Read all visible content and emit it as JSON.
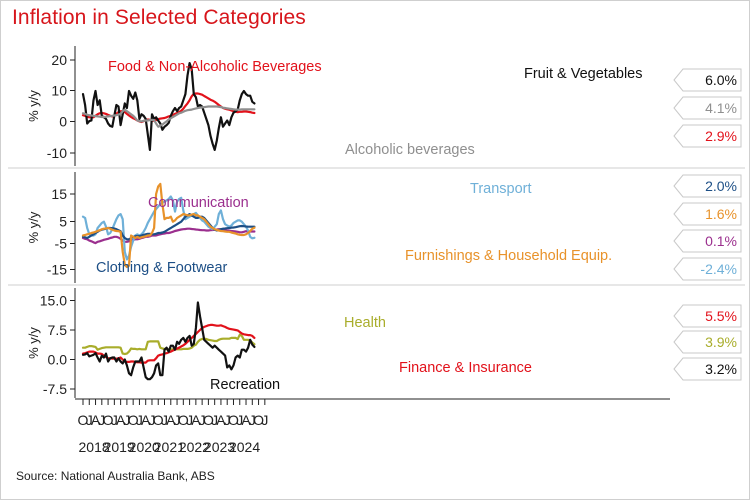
{
  "title": "Inflation in Selected Categories",
  "source": "Source: National Australia Bank, ABS",
  "colors": {
    "title": "#d7151b",
    "red": "#e2121b",
    "black": "#111111",
    "grey": "#8f8f8f",
    "purple": "#9b2f8e",
    "lightblue": "#6fb0d8",
    "navy": "#1d4f86",
    "orange": "#e8922a",
    "olive": "#a9ad2b"
  },
  "x_axis": {
    "month_ticks": [
      "O",
      "J",
      "A",
      "J",
      "O",
      "J",
      "A",
      "J",
      "O",
      "J",
      "A",
      "J",
      "O",
      "J",
      "A",
      "J",
      "O",
      "J",
      "A",
      "J",
      "O",
      "J",
      "A",
      "J",
      "O",
      "J",
      "A",
      "J",
      "O",
      "J"
    ],
    "year_labels": [
      "2018",
      "2019",
      "2020",
      "2021",
      "2022",
      "2023",
      "2024"
    ]
  },
  "chart_data": [
    {
      "type": "line",
      "ylabel": "% y/y",
      "ylim": [
        -15,
        25
      ],
      "yticks": [
        "20",
        "10",
        "0",
        "-10"
      ],
      "x_start": "2018-10",
      "series": [
        {
          "name": "Food & Non-Alcoholic Beverages",
          "color": "#e2121b",
          "values": [
            2.2,
            2.0,
            1.7,
            1.5,
            1.5,
            1.5,
            2.0,
            2.5,
            2.8,
            2.9,
            2.8,
            2.6,
            2.3,
            2.0,
            1.8,
            2.2,
            2.7,
            3.2,
            3.5,
            3.5,
            3.2,
            2.6,
            2.1,
            1.6,
            1.2,
            0.9,
            0.5,
            0.2,
            0,
            0.3,
            0.6,
            0.8,
            0.7,
            0.5,
            0.4,
            0.6,
            0.9,
            1.1,
            1.2,
            1.3,
            1.5,
            1.8,
            2.0,
            2.3,
            2.6,
            2.9,
            3.2,
            3.6,
            4.3,
            5.2,
            6.0,
            7.0,
            8.3,
            9.1,
            9.2,
            9.2,
            9.0,
            8.8,
            8.4,
            8.0,
            7.6,
            7.2,
            6.9,
            6.5,
            6.0,
            5.5,
            5.0,
            4.5,
            4.3,
            4.1,
            4.0,
            3.7,
            3.5,
            3.3,
            3.2,
            3.3,
            3.3,
            3.4,
            3.4,
            3.3,
            3.2,
            3.0,
            2.9
          ]
        },
        {
          "name": "Fruit & Vegetables",
          "color": "#111111",
          "values": [
            9.0,
            5.5,
            -0.5,
            0.3,
            0.5,
            7.0,
            10.0,
            5.5,
            7.0,
            2.0,
            1.5,
            1.0,
            -0.5,
            -1.3,
            -1.5,
            2.0,
            5.5,
            5.0,
            -1.0,
            2.5,
            6.0,
            4.5,
            10.0,
            8.5,
            7.5,
            9.5,
            7.0,
            1.0,
            2.5,
            2.0,
            1.0,
            -4.0,
            -9.0,
            2.5,
            1.0,
            1.5,
            0.5,
            -0.5,
            -2.5,
            -1.5,
            -1.0,
            -0.3,
            2.0,
            3.5,
            4.5,
            3.5,
            4.5,
            5.0,
            7.0,
            9.0,
            15.0,
            19.0,
            17.0,
            9.0,
            8.0,
            5.0,
            5.5,
            5.0,
            3.0,
            1.0,
            -1.0,
            -4.5,
            -7.0,
            -9.0,
            -6.0,
            -2.0,
            1.5,
            -1.5,
            -0.5,
            0.5,
            -1.0,
            1.5,
            3.0,
            3.5,
            4.0,
            7.0,
            9.0,
            10.0,
            9.0,
            8.5,
            8.5,
            6.5,
            6.0
          ]
        },
        {
          "name": "Alcoholic beverages",
          "color": "#8f8f8f",
          "values": [
            2.8,
            2.6,
            2.3,
            2.2,
            2.1,
            2.0,
            1.9,
            1.8,
            1.7,
            1.6,
            1.6,
            1.7,
            1.8,
            1.9,
            2.0,
            2.1,
            2.2,
            2.4,
            2.6,
            3.5,
            4.0,
            3.5,
            3.0,
            2.5,
            2.0,
            1.3,
            0.5,
            0.3,
            0.2,
            0.4,
            0.5,
            0.5,
            0.6,
            0.7,
            0.6,
            -0.5,
            -1.5,
            -1.2,
            -0.8,
            -0.3,
            0.2,
            0.8,
            1.2,
            1.6,
            2.0,
            2.4,
            2.8,
            3.0,
            3.3,
            3.6,
            3.8,
            3.9,
            4.0,
            4.2,
            4.4,
            4.5,
            4.6,
            4.7,
            4.8,
            4.9,
            5.0,
            5.0,
            5.0,
            5.0,
            5.0,
            4.9,
            4.8,
            4.6,
            4.5,
            4.4,
            4.3,
            4.2,
            4.1,
            4.0,
            4.0,
            4.0,
            4.1,
            4.1,
            4.1,
            4.1,
            4.1,
            4.1,
            4.1
          ]
        }
      ],
      "end_labels": [
        {
          "text": "6.0%",
          "color": "#111111"
        },
        {
          "text": "4.1%",
          "color": "#8f8f8f"
        },
        {
          "text": "2.9%",
          "color": "#e2121b"
        }
      ],
      "series_labels": [
        {
          "text": "Food & Non-Alcoholic Beverages",
          "color": "#e2121b"
        },
        {
          "text": "Fruit & Vegetables",
          "color": "#111111"
        },
        {
          "text": "Alcoholic beverages",
          "color": "#8f8f8f"
        }
      ]
    },
    {
      "type": "line",
      "ylabel": "% y/y",
      "ylim": [
        -20,
        22
      ],
      "yticks": [
        "15",
        "5",
        "-5",
        "-15"
      ],
      "x_start": "2018-10",
      "series": [
        {
          "name": "Communication",
          "color": "#9b2f8e",
          "values": [
            -2.5,
            -2.8,
            -3.0,
            -3.5,
            -3.8,
            -4.2,
            -4.5,
            -4.0,
            -3.8,
            -3.5,
            -3.2,
            -3.0,
            -2.8,
            -2.5,
            -2.3,
            -2.0,
            -2.0,
            -2.3,
            -2.8,
            -3.5,
            -4.0,
            -4.0,
            -3.8,
            -3.5,
            -3.2,
            -3.0,
            -3.0,
            -2.8,
            -2.5,
            -2.3,
            -2.0,
            -2.0,
            -1.8,
            -1.5,
            -1.5,
            -1.5,
            -1.2,
            -1.0,
            -0.8,
            -0.7,
            -0.5,
            -0.5,
            -0.3,
            0,
            0.3,
            0.5,
            0.7,
            0.9,
            1.0,
            1.1,
            1.2,
            1.2,
            1.1,
            1.0,
            0.9,
            0.8,
            0.7,
            0.6,
            0.6,
            0.5,
            0.5,
            0.6,
            0.7,
            0.8,
            0.9,
            1.0,
            1.0,
            0.8,
            0.6,
            0.5,
            0.4,
            0.3,
            0.2,
            0.1,
            0,
            -0.2,
            -0.2,
            0,
            0.2,
            0.1,
            0.1,
            0.1,
            0.1
          ]
        },
        {
          "name": "Transport",
          "color": "#6fb0d8",
          "values": [
            6.0,
            5.5,
            1.5,
            -1.0,
            -1.5,
            -1.5,
            -1.0,
            1.5,
            2.5,
            3.5,
            4.0,
            2.0,
            -1.0,
            -0.5,
            1.0,
            3.0,
            5.0,
            6.5,
            7.0,
            5.0,
            -8.0,
            -11.0,
            -9.5,
            -6.0,
            -3.5,
            -1.5,
            -1.0,
            -1.5,
            -1.0,
            0,
            1.5,
            3.5,
            5.0,
            6.5,
            8.0,
            9.0,
            10.0,
            11.0,
            11.5,
            12.0,
            12.5,
            13.0,
            14.0,
            12.5,
            8.0,
            12.0,
            13.0,
            13.5,
            8.5,
            5.0,
            5.5,
            6.0,
            6.5,
            7.0,
            7.5,
            6.5,
            5.5,
            4.5,
            4.0,
            3.0,
            2.0,
            1.5,
            1.0,
            2.0,
            3.0,
            7.0,
            8.5,
            5.0,
            3.0,
            2.5,
            2.0,
            2.5,
            3.5,
            4.0,
            4.5,
            4.5,
            4.0,
            3.0,
            2.0,
            0.5,
            -2.0,
            -2.6,
            -2.4
          ]
        },
        {
          "name": "Clothing & Footwear",
          "color": "#1d4f86",
          "values": [
            -2.0,
            -2.2,
            -2.5,
            -2.0,
            -1.5,
            -1.0,
            -0.5,
            0,
            0.5,
            0.8,
            1.0,
            1.2,
            1.5,
            1.5,
            1.4,
            1.3,
            1.0,
            0.6,
            0.2,
            -1.5,
            -2.5,
            -3.0,
            -3.0,
            -2.5,
            -2.0,
            -1.8,
            -1.7,
            -1.8,
            -1.5,
            -1.2,
            -1.0,
            -0.8,
            -0.8,
            -1.0,
            -1.0,
            -0.8,
            -0.5,
            -0.5,
            -0.3,
            0,
            0.5,
            1.0,
            1.5,
            2.0,
            2.5,
            3.0,
            3.5,
            4.0,
            5.0,
            6.0,
            6.5,
            7.0,
            6.5,
            6.0,
            5.5,
            5.5,
            6.0,
            6.0,
            5.5,
            4.5,
            3.5,
            2.5,
            1.5,
            0.8,
            0.5,
            0.7,
            1.0,
            1.2,
            1.3,
            1.4,
            1.5,
            1.6,
            1.7,
            1.8,
            2.0,
            2.2,
            2.3,
            2.2,
            2.1,
            2.0,
            2.0,
            2.0,
            2.0
          ]
        },
        {
          "name": "Furnishings & Household Equip.",
          "color": "#e8922a",
          "values": [
            -1.5,
            -1.3,
            -1.0,
            -0.8,
            -0.5,
            -0.3,
            0,
            0.3,
            0.6,
            1.0,
            1.2,
            1.3,
            1.5,
            1.2,
            0.8,
            0.5,
            0.3,
            0.2,
            0,
            -8.0,
            -13.0,
            -14.0,
            -13.5,
            -1.5,
            -2.0,
            -2.5,
            -2.0,
            -2.5,
            -2.2,
            -2.0,
            -1.8,
            -1.5,
            -1.5,
            -0.5,
            1.5,
            15.0,
            18.0,
            19.0,
            11.0,
            5.0,
            5.5,
            5.5,
            6.0,
            4.0,
            4.5,
            5.5,
            6.0,
            6.5,
            7.0,
            6.8,
            6.5,
            6.5,
            6.8,
            7.0,
            6.5,
            6.5,
            6.0,
            5.5,
            5.0,
            4.0,
            3.0,
            2.0,
            1.5,
            1.0,
            0.7,
            0.5,
            0.3,
            0.2,
            0.1,
            0,
            0,
            -0.3,
            -0.5,
            -0.7,
            -1.0,
            -1.2,
            -1.3,
            -1.3,
            -1.0,
            -0.5,
            0.3,
            1.2,
            1.6
          ]
        }
      ],
      "end_labels": [
        {
          "text": "2.0%",
          "color": "#1d4f86"
        },
        {
          "text": "1.6%",
          "color": "#e8922a"
        },
        {
          "text": "0.1%",
          "color": "#9b2f8e"
        },
        {
          "text": "-2.4%",
          "color": "#6fb0d8"
        }
      ],
      "series_labels": [
        {
          "text": "Communication",
          "color": "#9b2f8e"
        },
        {
          "text": "Transport",
          "color": "#6fb0d8"
        },
        {
          "text": "Clothing & Footwear",
          "color": "#1d4f86"
        },
        {
          "text": "Furnishings & Household Equip.",
          "color": "#e8922a"
        }
      ]
    },
    {
      "type": "line",
      "ylabel": "% y/y",
      "ylim": [
        -10,
        18
      ],
      "yticks": [
        "15.0",
        "7.5",
        "0.0",
        "-7.5"
      ],
      "x_start": "2018-10",
      "series": [
        {
          "name": "Health",
          "color": "#a9ad2b",
          "values": [
            3.0,
            3.0,
            3.2,
            3.4,
            3.4,
            3.3,
            3.2,
            2.5,
            2.7,
            2.9,
            3.0,
            3.1,
            3.1,
            3.1,
            3.1,
            3.1,
            3.1,
            3.1,
            3.0,
            1.5,
            1.4,
            1.5,
            2.0,
            2.8,
            2.7,
            2.7,
            2.6,
            2.7,
            2.6,
            2.6,
            2.6,
            4.5,
            4.6,
            4.6,
            4.6,
            4.6,
            4.6,
            3.0,
            2.8,
            2.7,
            2.6,
            2.6,
            2.6,
            2.6,
            2.6,
            2.6,
            2.6,
            2.6,
            2.7,
            2.7,
            2.7,
            2.8,
            3.0,
            3.5,
            3.8,
            4.5,
            5.0,
            5.2,
            5.3,
            5.2,
            5.0,
            4.9,
            4.8,
            4.7,
            4.7,
            5.0,
            5.2,
            5.3,
            5.3,
            5.3,
            5.3,
            5.5,
            5.5,
            5.5,
            5.2,
            6.3,
            6.0,
            5.0,
            5.0,
            5.0,
            4.8,
            4.3,
            3.9
          ]
        },
        {
          "name": "Finance & Insurance",
          "color": "#e2121b",
          "values": [
            1.5,
            1.6,
            1.8,
            2.0,
            2.0,
            2.0,
            1.8,
            1.5,
            1.5,
            1.4,
            1.0,
            0.6,
            0.3,
            0.3,
            0.2,
            0.2,
            0.2,
            0.3,
            0.5,
            0,
            -0.5,
            -0.6,
            -0.6,
            -0.5,
            -0.5,
            -0.6,
            -0.7,
            -0.7,
            -0.8,
            -0.8,
            -0.8,
            -0.3,
            -0.2,
            -0.2,
            -0.2,
            0.3,
            1.0,
            1.2,
            1.3,
            1.5,
            1.6,
            1.8,
            2.0,
            2.3,
            2.5,
            2.8,
            3.0,
            3.3,
            3.6,
            4.0,
            4.5,
            5.0,
            5.5,
            6.0,
            6.5,
            7.0,
            7.5,
            8.0,
            8.3,
            8.5,
            8.7,
            8.8,
            8.8,
            8.7,
            8.6,
            8.6,
            8.7,
            8.5,
            8.3,
            8.0,
            7.8,
            7.7,
            7.6,
            7.5,
            7.4,
            7.0,
            6.6,
            6.4,
            6.3,
            6.2,
            6.2,
            6.0,
            5.5
          ]
        },
        {
          "name": "Recreation",
          "color": "#111111",
          "values": [
            1.2,
            1.3,
            1.6,
            0.8,
            1.0,
            1.2,
            1.6,
            0.5,
            -0.5,
            1.0,
            0.5,
            1.5,
            -0.5,
            0.3,
            0.5,
            0.5,
            -0.5,
            0.3,
            -0.5,
            -1.0,
            0,
            -1.5,
            -3.5,
            -4.0,
            -2.0,
            -0.5,
            -0.5,
            -0.5,
            0.5,
            -2.0,
            -4.5,
            -5.0,
            -5.0,
            -4.5,
            -3.5,
            -1.5,
            -1.0,
            -4.0,
            -4.0,
            2.5,
            3.0,
            2.0,
            3.5,
            3.5,
            2.5,
            4.5,
            4.0,
            5.0,
            5.5,
            4.5,
            5.5,
            6.0,
            3.5,
            4.0,
            8.0,
            14.5,
            11.0,
            8.0,
            5.0,
            4.5,
            4.0,
            3.5,
            3.0,
            3.5,
            3.0,
            2.5,
            2.0,
            1.5,
            1.0,
            -2.0,
            -1.5,
            -2.5,
            -1.5,
            0.5,
            1.0,
            0.5,
            2.5,
            2.5,
            2.0,
            3.0,
            5.0,
            3.8,
            3.2
          ]
        }
      ],
      "end_labels": [
        {
          "text": "5.5%",
          "color": "#e2121b"
        },
        {
          "text": "3.9%",
          "color": "#a9ad2b"
        },
        {
          "text": "3.2%",
          "color": "#111111"
        }
      ],
      "series_labels": [
        {
          "text": "Health",
          "color": "#a9ad2b"
        },
        {
          "text": "Finance & Insurance",
          "color": "#e2121b"
        },
        {
          "text": "Recreation",
          "color": "#111111"
        }
      ]
    }
  ]
}
